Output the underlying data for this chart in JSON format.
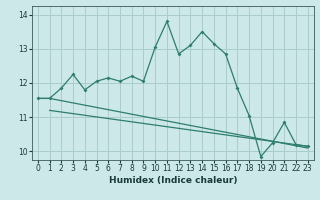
{
  "background_color": "#cce8e8",
  "grid_color": "#aacccc",
  "line_color": "#2e7d6e",
  "xlabel": "Humidex (Indice chaleur)",
  "xlim": [
    -0.5,
    23.5
  ],
  "ylim": [
    9.75,
    14.25
  ],
  "yticks": [
    10,
    11,
    12,
    13,
    14
  ],
  "xticks": [
    0,
    1,
    2,
    3,
    4,
    5,
    6,
    7,
    8,
    9,
    10,
    11,
    12,
    13,
    14,
    15,
    16,
    17,
    18,
    19,
    20,
    21,
    22,
    23
  ],
  "series1_x": [
    0,
    1,
    2,
    3,
    4,
    5,
    6,
    7,
    8,
    9,
    10,
    11,
    12,
    13,
    14,
    15,
    16,
    17,
    18,
    19,
    20,
    21,
    22,
    23
  ],
  "series1_y": [
    11.55,
    11.55,
    11.85,
    12.25,
    11.8,
    12.05,
    12.15,
    12.05,
    12.2,
    12.05,
    13.05,
    13.8,
    12.85,
    13.1,
    13.5,
    13.15,
    12.85,
    11.85,
    11.05,
    9.85,
    10.25,
    10.85,
    10.2,
    10.15
  ],
  "series2_x": [
    0,
    1,
    23
  ],
  "series2_y": [
    11.55,
    11.55,
    10.1
  ],
  "series3_x": [
    1,
    23
  ],
  "series3_y": [
    11.2,
    10.15
  ]
}
